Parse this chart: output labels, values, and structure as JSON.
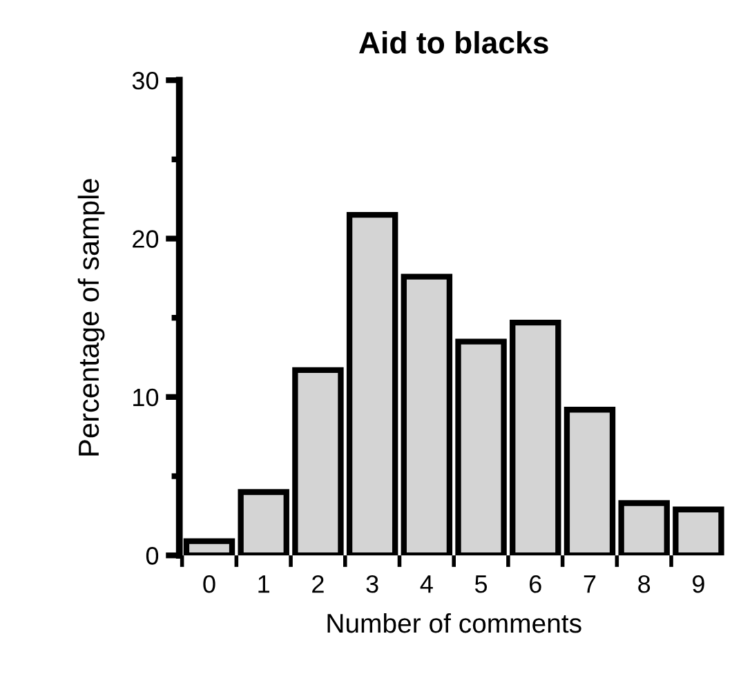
{
  "chart_data": {
    "type": "bar",
    "title": "Aid to blacks",
    "xlabel": "Number of comments",
    "ylabel": "Percentage of sample",
    "categories": [
      "0",
      "1",
      "2",
      "3",
      "4",
      "5",
      "6",
      "7",
      "8",
      "9"
    ],
    "values": [
      0.9,
      4.0,
      11.7,
      21.5,
      17.6,
      13.5,
      14.7,
      9.2,
      3.3,
      2.9
    ],
    "color": "#d4d4d4",
    "ylim": [
      0,
      30
    ],
    "yticks": [
      0,
      {
        "value": 5,
        "label": null
      },
      10,
      {
        "value": 15,
        "label": null
      },
      20,
      {
        "value": 25,
        "label": null
      },
      30
    ],
    "grid": false
  }
}
